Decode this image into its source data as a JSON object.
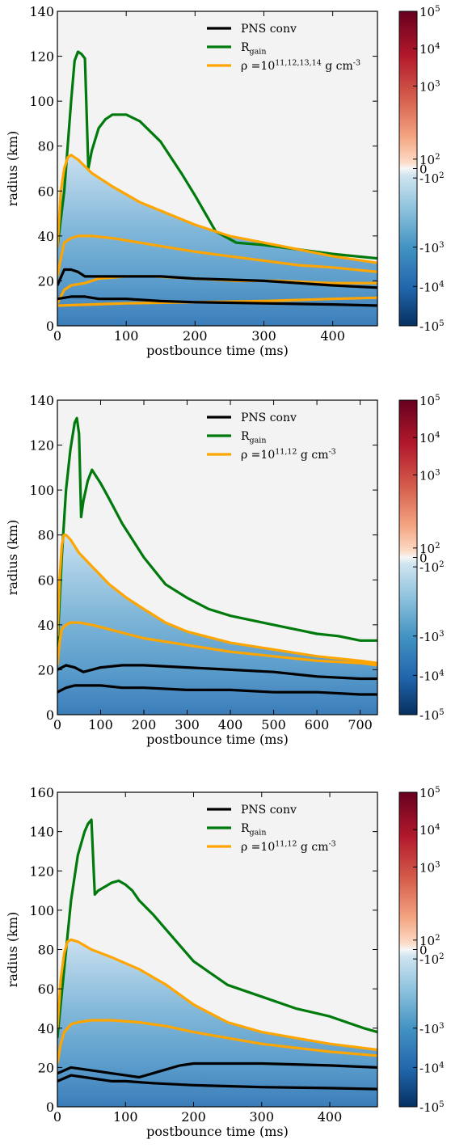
{
  "chart_data": [
    {
      "type": "heatmap",
      "xlabel": "postbounce time (ms)",
      "ylabel": "radius (km)",
      "xlim": [
        0,
        465
      ],
      "ylim": [
        0,
        140
      ],
      "xticks": [
        0,
        100,
        200,
        300,
        400
      ],
      "yticks": [
        0,
        20,
        40,
        60,
        80,
        100,
        120,
        140
      ],
      "legend": [
        "PNS conv",
        "R_gain",
        "ρ =10^{11,12,13,14} g cm^-3"
      ],
      "legend_placement": "top-right",
      "colorbar": {
        "labels": [
          "10^5",
          "10^4",
          "10^3",
          "10^2",
          "0",
          "-10^2",
          "-10^3",
          "-10^4",
          "-10^5"
        ]
      },
      "series": [
        {
          "name": "R_gain",
          "x": [
            0,
            10,
            20,
            25,
            30,
            35,
            40,
            45,
            50,
            60,
            70,
            80,
            100,
            120,
            150,
            180,
            200,
            230,
            260,
            300,
            350,
            400,
            465
          ],
          "y": [
            35,
            60,
            100,
            118,
            122,
            121,
            119,
            70,
            78,
            88,
            92,
            94,
            94,
            91,
            82,
            68,
            58,
            42,
            37,
            36,
            34,
            32,
            30
          ]
        },
        {
          "name": "ρ =10^11",
          "x": [
            0,
            5,
            10,
            15,
            20,
            30,
            50,
            80,
            120,
            160,
            200,
            250,
            300,
            350,
            400,
            465
          ],
          "y": [
            35,
            60,
            70,
            75,
            76,
            74,
            68,
            62,
            55,
            50,
            45,
            40,
            37,
            34,
            31,
            28
          ]
        },
        {
          "name": "ρ =10^12",
          "x": [
            0,
            5,
            10,
            20,
            30,
            50,
            80,
            120,
            160,
            200,
            250,
            300,
            350,
            400,
            465
          ],
          "y": [
            22,
            30,
            37,
            39,
            40,
            40,
            39,
            37,
            35,
            33,
            31,
            29,
            27,
            26,
            24
          ]
        },
        {
          "name": "ρ =10^13",
          "x": [
            0,
            10,
            20,
            40,
            60,
            100,
            140,
            200,
            260,
            320,
            400,
            465
          ],
          "y": [
            10,
            16,
            18,
            19,
            21,
            22,
            22,
            21,
            20,
            20,
            19,
            19
          ]
        },
        {
          "name": "ρ =10^14",
          "x": [
            0,
            50,
            100,
            200,
            300,
            400,
            465
          ],
          "y": [
            9,
            9.5,
            10,
            10.5,
            11,
            12,
            12.5
          ]
        },
        {
          "name": "PNS conv outer",
          "x": [
            0,
            10,
            20,
            30,
            40,
            50,
            60,
            80,
            100,
            150,
            200,
            300,
            400,
            465
          ],
          "y": [
            18,
            25,
            25,
            24,
            22,
            22,
            22,
            22,
            22,
            22,
            21,
            20,
            18,
            17
          ]
        },
        {
          "name": "PNS conv inner",
          "x": [
            0,
            20,
            40,
            60,
            100,
            150,
            200,
            300,
            400,
            465
          ],
          "y": [
            12,
            13,
            13,
            12,
            12,
            11,
            10.5,
            10,
            9.5,
            9
          ]
        }
      ]
    },
    {
      "type": "heatmap",
      "xlabel": "postbounce time (ms)",
      "ylabel": "radius (km)",
      "xlim": [
        0,
        740
      ],
      "ylim": [
        0,
        140
      ],
      "xticks": [
        0,
        100,
        200,
        300,
        400,
        500,
        600,
        700
      ],
      "yticks": [
        0,
        20,
        40,
        60,
        80,
        100,
        120,
        140
      ],
      "legend": [
        "PNS conv",
        "R_gain",
        "ρ =10^{11,12} g cm^-3"
      ],
      "legend_placement": "top-right",
      "colorbar": {
        "labels": [
          "10^5",
          "10^4",
          "10^3",
          "10^2",
          "0",
          "-10^2",
          "-10^3",
          "-10^4",
          "-10^5"
        ]
      },
      "series": [
        {
          "name": "R_gain",
          "x": [
            0,
            10,
            20,
            30,
            40,
            45,
            50,
            55,
            60,
            70,
            80,
            100,
            120,
            150,
            200,
            250,
            300,
            350,
            400,
            450,
            500,
            550,
            600,
            650,
            700,
            740
          ],
          "y": [
            30,
            70,
            100,
            118,
            130,
            132,
            125,
            88,
            95,
            104,
            109,
            103,
            96,
            85,
            70,
            58,
            52,
            47,
            44,
            42,
            40,
            38,
            36,
            35,
            33,
            33
          ]
        },
        {
          "name": "ρ =10^11",
          "x": [
            0,
            5,
            10,
            15,
            20,
            30,
            50,
            80,
            120,
            160,
            200,
            250,
            300,
            400,
            500,
            600,
            700,
            740
          ],
          "y": [
            35,
            60,
            75,
            80,
            80,
            78,
            72,
            66,
            58,
            52,
            47,
            41,
            37,
            32,
            29,
            26,
            24,
            23
          ]
        },
        {
          "name": "ρ =10^12",
          "x": [
            0,
            5,
            10,
            20,
            30,
            50,
            80,
            120,
            160,
            200,
            300,
            400,
            500,
            600,
            700,
            740
          ],
          "y": [
            22,
            32,
            38,
            40,
            41,
            41,
            40,
            38,
            36,
            34,
            31,
            28,
            26,
            24,
            23,
            22
          ]
        },
        {
          "name": "PNS conv outer",
          "x": [
            0,
            20,
            40,
            60,
            80,
            100,
            150,
            200,
            300,
            400,
            500,
            600,
            700,
            740
          ],
          "y": [
            20,
            22,
            21,
            19,
            20,
            21,
            22,
            22,
            21,
            20,
            19,
            17,
            16,
            16
          ]
        },
        {
          "name": "PNS conv inner",
          "x": [
            0,
            20,
            40,
            60,
            100,
            150,
            200,
            300,
            400,
            500,
            600,
            700,
            740
          ],
          "y": [
            10,
            12,
            13,
            13,
            13,
            12,
            12,
            11,
            11,
            10,
            10,
            9,
            9
          ]
        }
      ]
    },
    {
      "type": "heatmap",
      "xlabel": "postbounce time (ms)",
      "ylabel": "radius (km)",
      "xlim": [
        0,
        470
      ],
      "ylim": [
        0,
        160
      ],
      "xticks": [
        0,
        100,
        200,
        300,
        400
      ],
      "yticks": [
        0,
        20,
        40,
        60,
        80,
        100,
        120,
        140,
        160
      ],
      "legend": [
        "PNS conv",
        "R_gain",
        "ρ =10^{11,12} g cm^-3"
      ],
      "legend_placement": "top-right",
      "colorbar": {
        "labels": [
          "10^5",
          "10^4",
          "10^3",
          "10^2",
          "0",
          "-10^2",
          "-10^3",
          "-10^4",
          "-10^5"
        ]
      },
      "series": [
        {
          "name": "R_gain",
          "x": [
            0,
            10,
            20,
            30,
            40,
            45,
            50,
            55,
            60,
            70,
            80,
            90,
            100,
            110,
            120,
            140,
            160,
            200,
            250,
            300,
            350,
            400,
            450,
            470
          ],
          "y": [
            35,
            70,
            105,
            128,
            140,
            144,
            146,
            108,
            110,
            112,
            114,
            115,
            113,
            110,
            105,
            98,
            90,
            74,
            62,
            56,
            50,
            46,
            40,
            38
          ]
        },
        {
          "name": "ρ =10^11",
          "x": [
            0,
            5,
            10,
            15,
            20,
            30,
            50,
            80,
            120,
            160,
            200,
            250,
            300,
            350,
            400,
            470
          ],
          "y": [
            40,
            65,
            78,
            84,
            85,
            84,
            80,
            76,
            70,
            62,
            52,
            43,
            38,
            35,
            32,
            29
          ]
        },
        {
          "name": "ρ =10^12",
          "x": [
            0,
            5,
            10,
            20,
            30,
            50,
            80,
            120,
            160,
            200,
            250,
            300,
            350,
            400,
            470
          ],
          "y": [
            22,
            32,
            38,
            42,
            43,
            44,
            44,
            43,
            41,
            38,
            35,
            32,
            30,
            28,
            26
          ]
        },
        {
          "name": "PNS conv outer",
          "x": [
            0,
            20,
            40,
            60,
            80,
            100,
            120,
            140,
            150,
            180,
            200,
            250,
            300,
            400,
            470
          ],
          "y": [
            17,
            20,
            19,
            18,
            17,
            16,
            15,
            17,
            18,
            21,
            22,
            22,
            22,
            21,
            20
          ]
        },
        {
          "name": "PNS conv inner",
          "x": [
            0,
            20,
            40,
            60,
            80,
            100,
            140,
            200,
            250,
            300,
            400,
            470
          ],
          "y": [
            13,
            16,
            15,
            14,
            13,
            13,
            12,
            11,
            10.5,
            10,
            9.5,
            9
          ]
        }
      ]
    }
  ]
}
